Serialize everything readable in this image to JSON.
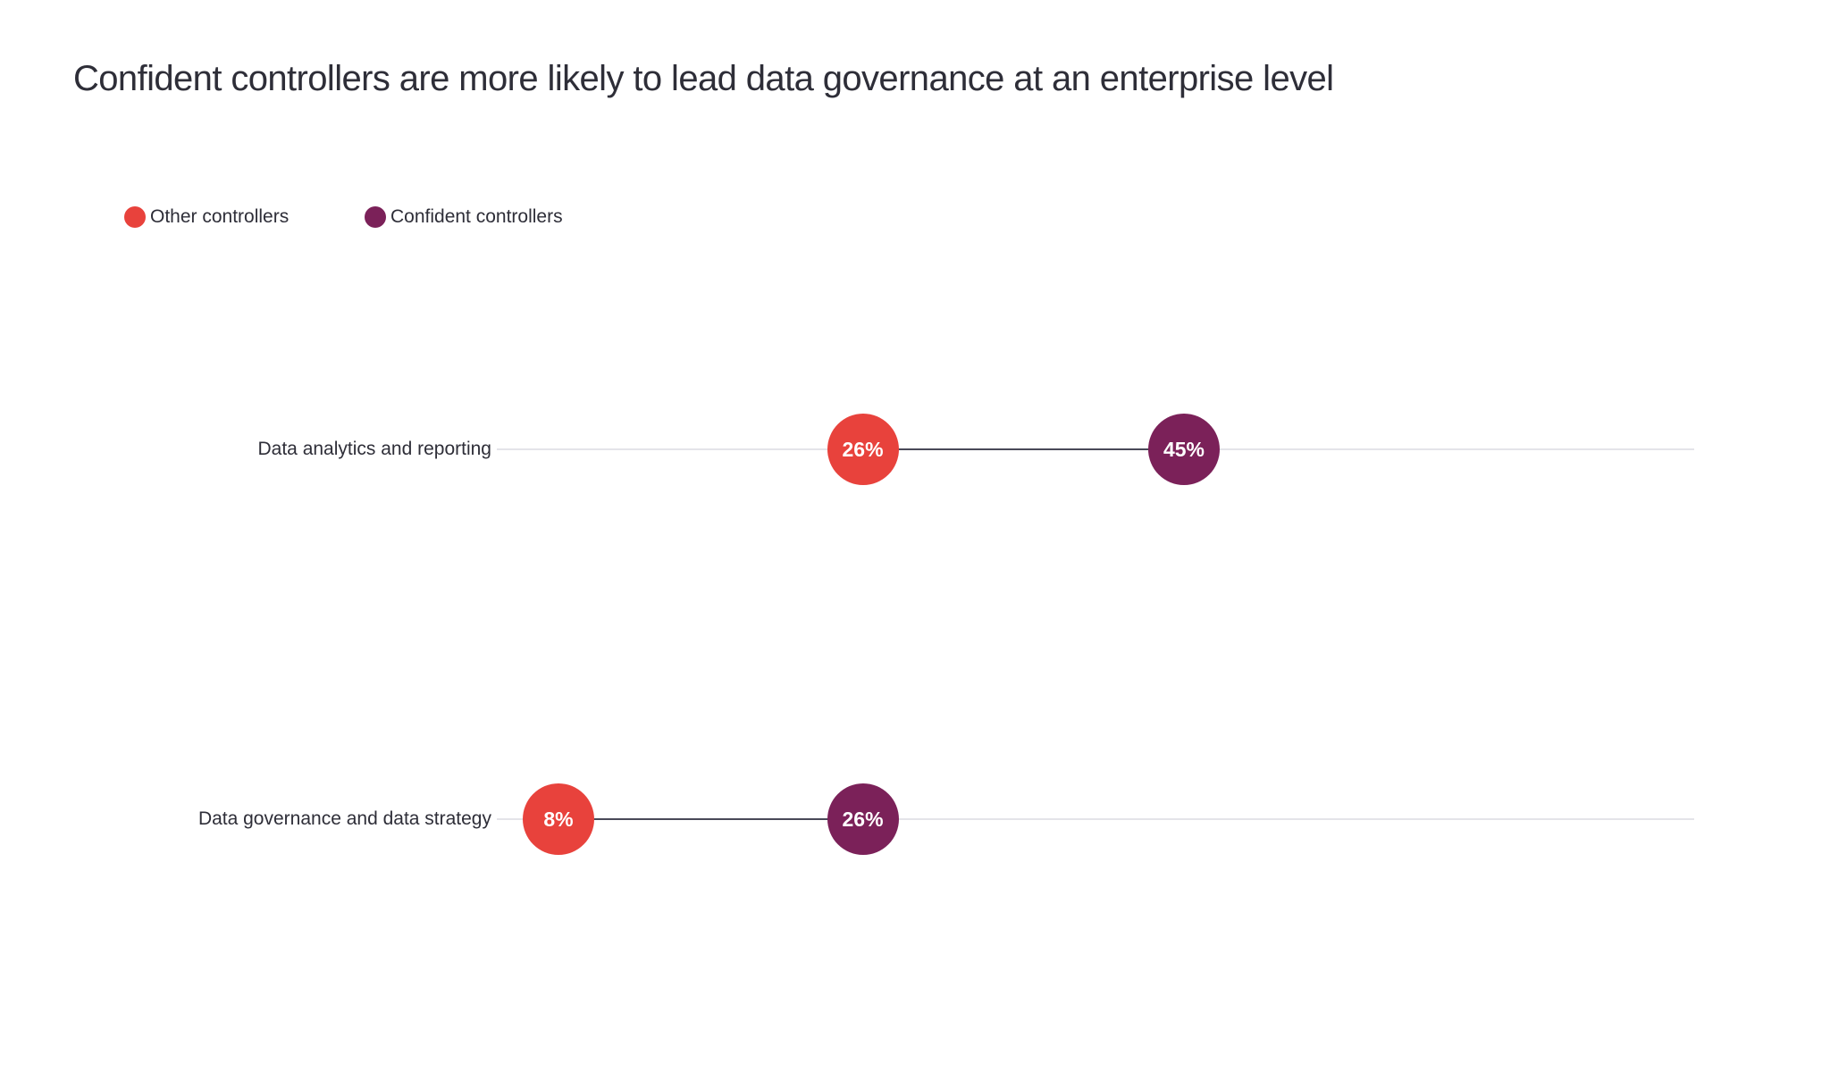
{
  "title": "Confident controllers are more likely to lead data governance at an enterprise level",
  "legend": {
    "items": [
      {
        "label": "Other controllers",
        "color": "#E8423C"
      },
      {
        "label": "Confident controllers",
        "color": "#7B2159"
      }
    ]
  },
  "rows": [
    {
      "category": "Data analytics and reporting",
      "other_value": "26%",
      "confident_value": "45%"
    },
    {
      "category": "Data governance and data strategy",
      "other_value": "8%",
      "confident_value": "26%"
    }
  ],
  "colors": {
    "other_controllers": "#E8423C",
    "confident_controllers": "#7B2159",
    "connector": "#494958",
    "baseline": "#E4E4E9",
    "text": "#2E2E38",
    "background": "#FFFFFF"
  },
  "chart_data": {
    "type": "scatter",
    "variant": "dumbbell",
    "title": "Confident controllers are more likely to lead data governance at an enterprise level",
    "categories": [
      "Data analytics and reporting",
      "Data governance and data strategy"
    ],
    "series": [
      {
        "name": "Other controllers",
        "color": "#E8423C",
        "values": [
          26,
          8
        ]
      },
      {
        "name": "Confident controllers",
        "color": "#7B2159",
        "values": [
          45,
          26
        ]
      }
    ],
    "value_suffix": "%",
    "xlim": [
      0,
      75
    ],
    "grid": false,
    "axes_visible": false,
    "data_labels": "inside-markers",
    "legend_position": "top-left"
  }
}
